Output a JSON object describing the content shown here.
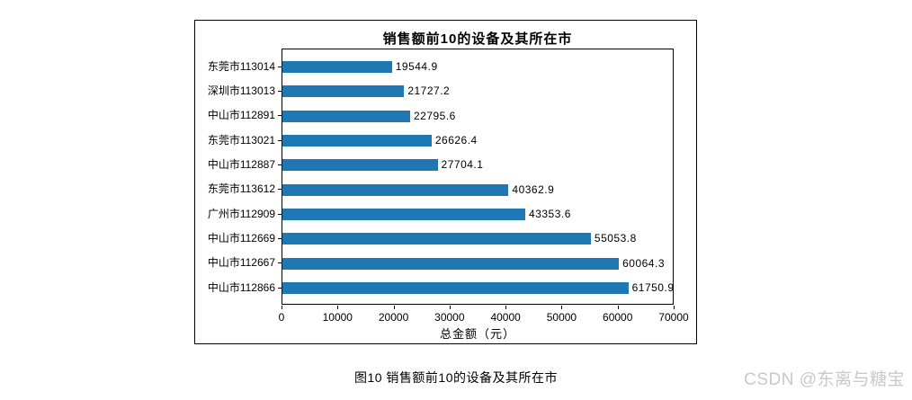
{
  "chart_data": {
    "type": "bar",
    "orientation": "horizontal",
    "title": "销售额前10的设备及其所在市",
    "categories": [
      "东莞市113014",
      "深圳市113013",
      "中山市112891",
      "东莞市113021",
      "中山市112887",
      "东莞市113612",
      "广州市112909",
      "中山市112669",
      "中山市112667",
      "中山市112866"
    ],
    "values": [
      19544.9,
      21727.2,
      22795.6,
      26626.4,
      27704.1,
      40362.9,
      43353.6,
      55053.8,
      60064.3,
      61750.9
    ],
    "value_labels": [
      "19544.9",
      "21727.2",
      "22795.6",
      "26626.4",
      "27704.1",
      "40362.9",
      "43353.6",
      "55053.8",
      "60064.3",
      "61750.9"
    ],
    "xlabel": "总金额（元）",
    "ylabel": "",
    "xlim": [
      0,
      70000
    ],
    "x_ticks": [
      0,
      10000,
      20000,
      30000,
      40000,
      50000,
      60000,
      70000
    ],
    "x_tick_labels": [
      "0",
      "10000",
      "20000",
      "30000",
      "40000",
      "50000",
      "60000",
      "70000"
    ],
    "bar_color": "#1f77b4",
    "grid": false,
    "legend": "none"
  },
  "caption": "图10 销售额前10的设备及其所在市",
  "watermark": "CSDN @东离与糖宝"
}
